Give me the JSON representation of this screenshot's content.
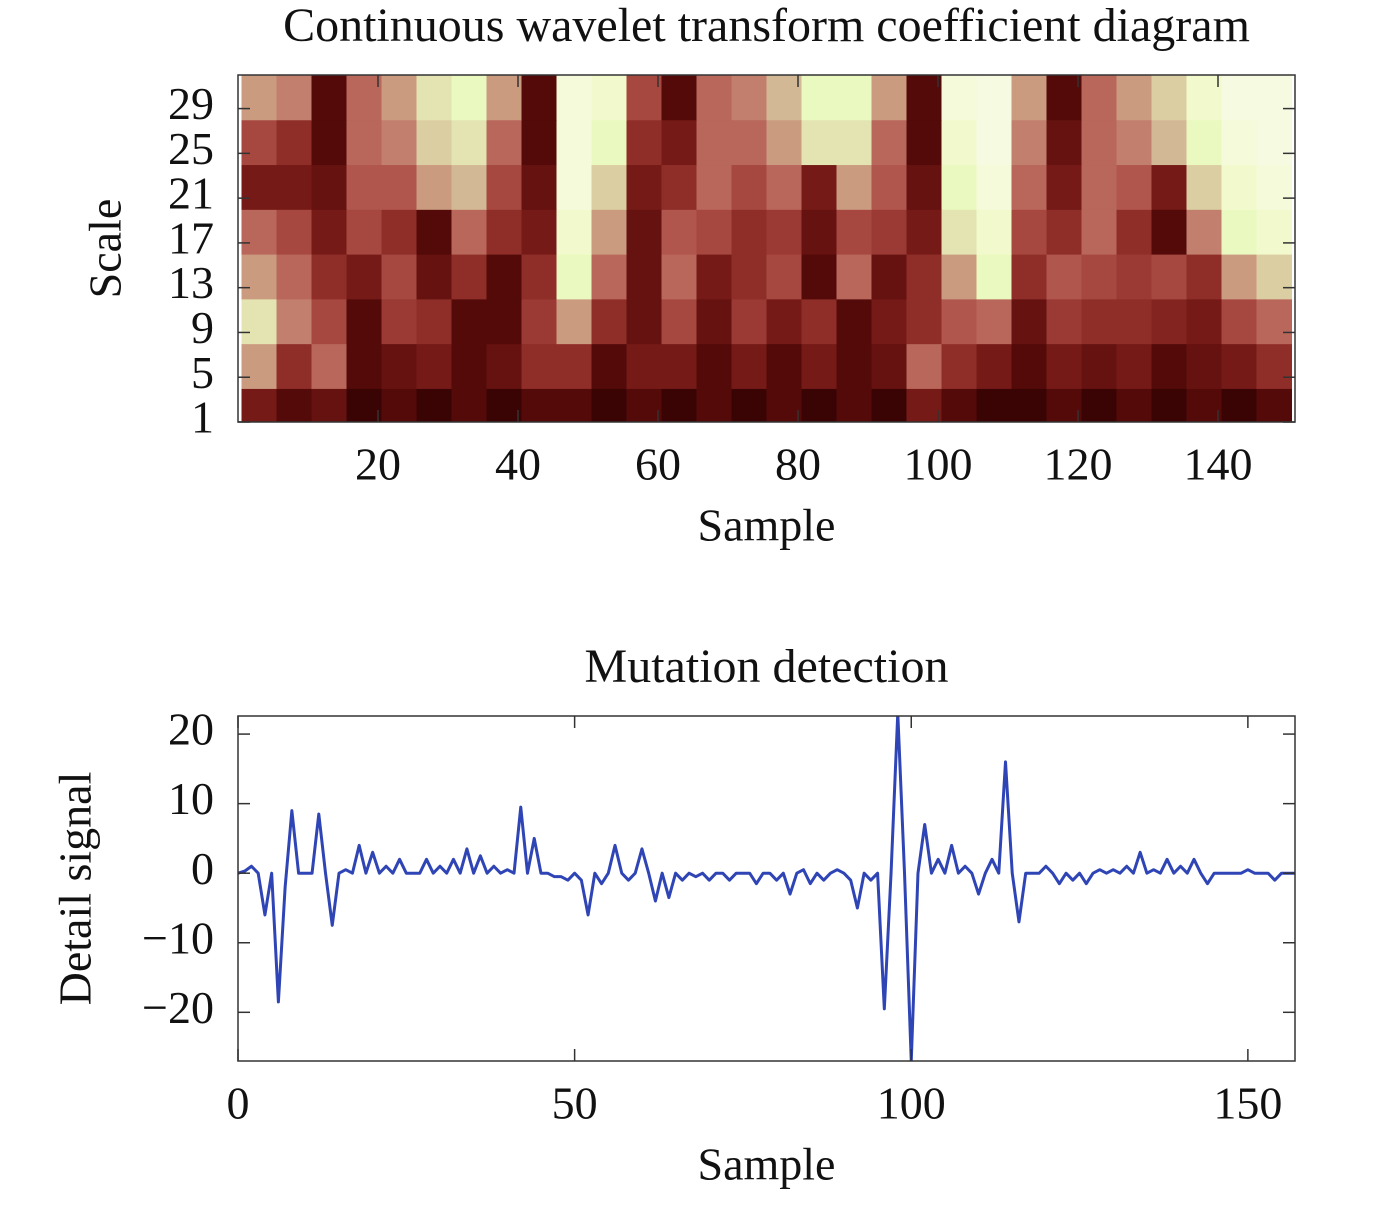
{
  "chart_data": [
    {
      "type": "heatmap",
      "title": "Continuous wavelet transform coefficient diagram",
      "xlabel": "Sample",
      "ylabel": "Scale",
      "colormap": "pink",
      "xlim": [
        0,
        151
      ],
      "ylim": [
        1,
        32
      ],
      "xticks": [
        20,
        40,
        60,
        80,
        100,
        120,
        140
      ],
      "yticks": [
        1,
        5,
        9,
        13,
        17,
        21,
        25,
        29
      ],
      "x": [
        3,
        8,
        13,
        18,
        23,
        28,
        33,
        38,
        43,
        48,
        53,
        58,
        63,
        68,
        73,
        78,
        83,
        88,
        93,
        98,
        103,
        108,
        113,
        118,
        123,
        128,
        133,
        138,
        143,
        148
      ],
      "y": [
        2,
        6,
        10,
        14,
        18,
        22,
        26,
        30
      ],
      "z": [
        [
          0.2,
          0.1,
          0.15,
          0.05,
          0.1,
          0.05,
          0.1,
          0.05,
          0.1,
          0.1,
          0.05,
          0.1,
          0.05,
          0.1,
          0.05,
          0.1,
          0.05,
          0.1,
          0.05,
          0.2,
          0.1,
          0.05,
          0.05,
          0.1,
          0.05,
          0.1,
          0.05,
          0.1,
          0.05,
          0.1
        ],
        [
          0.6,
          0.3,
          0.5,
          0.1,
          0.15,
          0.2,
          0.1,
          0.15,
          0.3,
          0.3,
          0.1,
          0.2,
          0.2,
          0.1,
          0.2,
          0.1,
          0.2,
          0.1,
          0.15,
          0.5,
          0.3,
          0.2,
          0.1,
          0.2,
          0.15,
          0.2,
          0.1,
          0.15,
          0.2,
          0.3
        ],
        [
          0.75,
          0.55,
          0.4,
          0.1,
          0.35,
          0.3,
          0.1,
          0.1,
          0.35,
          0.6,
          0.3,
          0.15,
          0.4,
          0.15,
          0.35,
          0.2,
          0.3,
          0.1,
          0.2,
          0.3,
          0.45,
          0.5,
          0.15,
          0.35,
          0.3,
          0.3,
          0.25,
          0.2,
          0.4,
          0.5
        ],
        [
          0.6,
          0.5,
          0.3,
          0.2,
          0.4,
          0.15,
          0.3,
          0.1,
          0.3,
          0.8,
          0.5,
          0.15,
          0.5,
          0.2,
          0.3,
          0.4,
          0.1,
          0.5,
          0.15,
          0.3,
          0.6,
          0.8,
          0.3,
          0.45,
          0.4,
          0.35,
          0.4,
          0.3,
          0.6,
          0.7
        ],
        [
          0.5,
          0.4,
          0.2,
          0.4,
          0.3,
          0.1,
          0.5,
          0.3,
          0.2,
          0.85,
          0.6,
          0.15,
          0.45,
          0.4,
          0.3,
          0.35,
          0.15,
          0.4,
          0.35,
          0.2,
          0.75,
          0.85,
          0.4,
          0.3,
          0.5,
          0.3,
          0.1,
          0.55,
          0.8,
          0.85
        ],
        [
          0.2,
          0.2,
          0.15,
          0.45,
          0.45,
          0.6,
          0.65,
          0.4,
          0.15,
          0.9,
          0.7,
          0.2,
          0.3,
          0.5,
          0.4,
          0.5,
          0.2,
          0.6,
          0.45,
          0.15,
          0.8,
          0.9,
          0.5,
          0.2,
          0.5,
          0.45,
          0.2,
          0.7,
          0.85,
          0.9
        ],
        [
          0.4,
          0.3,
          0.1,
          0.5,
          0.55,
          0.7,
          0.75,
          0.5,
          0.1,
          0.9,
          0.8,
          0.3,
          0.2,
          0.5,
          0.5,
          0.6,
          0.75,
          0.75,
          0.5,
          0.1,
          0.85,
          0.95,
          0.55,
          0.15,
          0.5,
          0.55,
          0.65,
          0.8,
          0.9,
          0.95
        ],
        [
          0.6,
          0.55,
          0.1,
          0.5,
          0.6,
          0.75,
          0.8,
          0.6,
          0.1,
          0.9,
          0.85,
          0.4,
          0.1,
          0.5,
          0.55,
          0.65,
          0.8,
          0.8,
          0.6,
          0.1,
          0.9,
          0.95,
          0.6,
          0.1,
          0.5,
          0.6,
          0.7,
          0.85,
          0.95,
          0.98
        ]
      ]
    },
    {
      "type": "line",
      "title": "Mutation detection",
      "xlabel": "Sample",
      "ylabel": "Detail signal",
      "color": "#2f45b5",
      "xlim": [
        0,
        157
      ],
      "ylim": [
        -27,
        22.6
      ],
      "xticks": [
        0,
        50,
        100,
        150
      ],
      "yticks": [
        {
          "value": -20,
          "label": "−20"
        },
        {
          "value": -10,
          "label": "−10"
        },
        0,
        10,
        20
      ],
      "x": [
        0,
        1,
        2,
        3,
        4,
        5,
        6,
        7,
        8,
        9,
        10,
        11,
        12,
        13,
        14,
        15,
        16,
        17,
        18,
        19,
        20,
        21,
        22,
        23,
        24,
        25,
        26,
        27,
        28,
        29,
        30,
        31,
        32,
        33,
        34,
        35,
        36,
        37,
        38,
        39,
        40,
        41,
        42,
        43,
        44,
        45,
        46,
        47,
        48,
        49,
        50,
        51,
        52,
        53,
        54,
        55,
        56,
        57,
        58,
        59,
        60,
        61,
        62,
        63,
        64,
        65,
        66,
        67,
        68,
        69,
        70,
        71,
        72,
        73,
        74,
        75,
        76,
        77,
        78,
        79,
        80,
        81,
        82,
        83,
        84,
        85,
        86,
        87,
        88,
        89,
        90,
        91,
        92,
        93,
        94,
        95,
        96,
        97,
        98,
        99,
        100,
        101,
        102,
        103,
        104,
        105,
        106,
        107,
        108,
        109,
        110,
        111,
        112,
        113,
        114,
        115,
        116,
        117,
        118,
        119,
        120,
        121,
        122,
        123,
        124,
        125,
        126,
        127,
        128,
        129,
        130,
        131,
        132,
        133,
        134,
        135,
        136,
        137,
        138,
        139,
        140,
        141,
        142,
        143,
        144,
        145,
        146,
        147,
        148,
        149,
        150,
        151,
        152,
        153,
        154,
        155,
        156,
        157
      ],
      "values": [
        0,
        0.3,
        1,
        0,
        -6,
        0,
        -18.5,
        -2,
        9,
        0,
        0,
        0,
        8.5,
        0,
        -7.5,
        0,
        0.5,
        0,
        4,
        0,
        3,
        0,
        1,
        0,
        2,
        0,
        0,
        0,
        2,
        0,
        1,
        0,
        2,
        0,
        3.5,
        0,
        2.5,
        0,
        1,
        0,
        0.5,
        0,
        9.5,
        0,
        5,
        0,
        0,
        -0.5,
        -0.5,
        -1,
        0,
        -1,
        -6,
        0,
        -1.5,
        0,
        4,
        0,
        -1,
        0,
        3.5,
        0,
        -4,
        0,
        -3.5,
        0,
        -1,
        0,
        -0.5,
        0,
        -1,
        0,
        0,
        -1,
        0,
        0,
        0,
        -1.5,
        0,
        0,
        -1,
        0,
        -3,
        0,
        0.5,
        -1.5,
        0,
        -1,
        0,
        0.5,
        0,
        -1,
        -5,
        0,
        -1,
        0,
        -19.5,
        0,
        23,
        0,
        -27,
        0,
        7,
        0,
        2,
        0,
        4,
        0,
        1,
        0,
        -3,
        0,
        2,
        0,
        16,
        0,
        -7,
        0,
        0,
        0,
        1,
        0,
        -1.5,
        0,
        -1,
        0,
        -1.5,
        0,
        0.5,
        0,
        0.5,
        0,
        1,
        0,
        3,
        0,
        0.5,
        0,
        2,
        0,
        1,
        0,
        2,
        0,
        -1.5,
        0,
        0,
        0,
        0,
        0,
        0.5,
        0,
        0,
        0,
        -1,
        0,
        0,
        0
      ]
    }
  ]
}
